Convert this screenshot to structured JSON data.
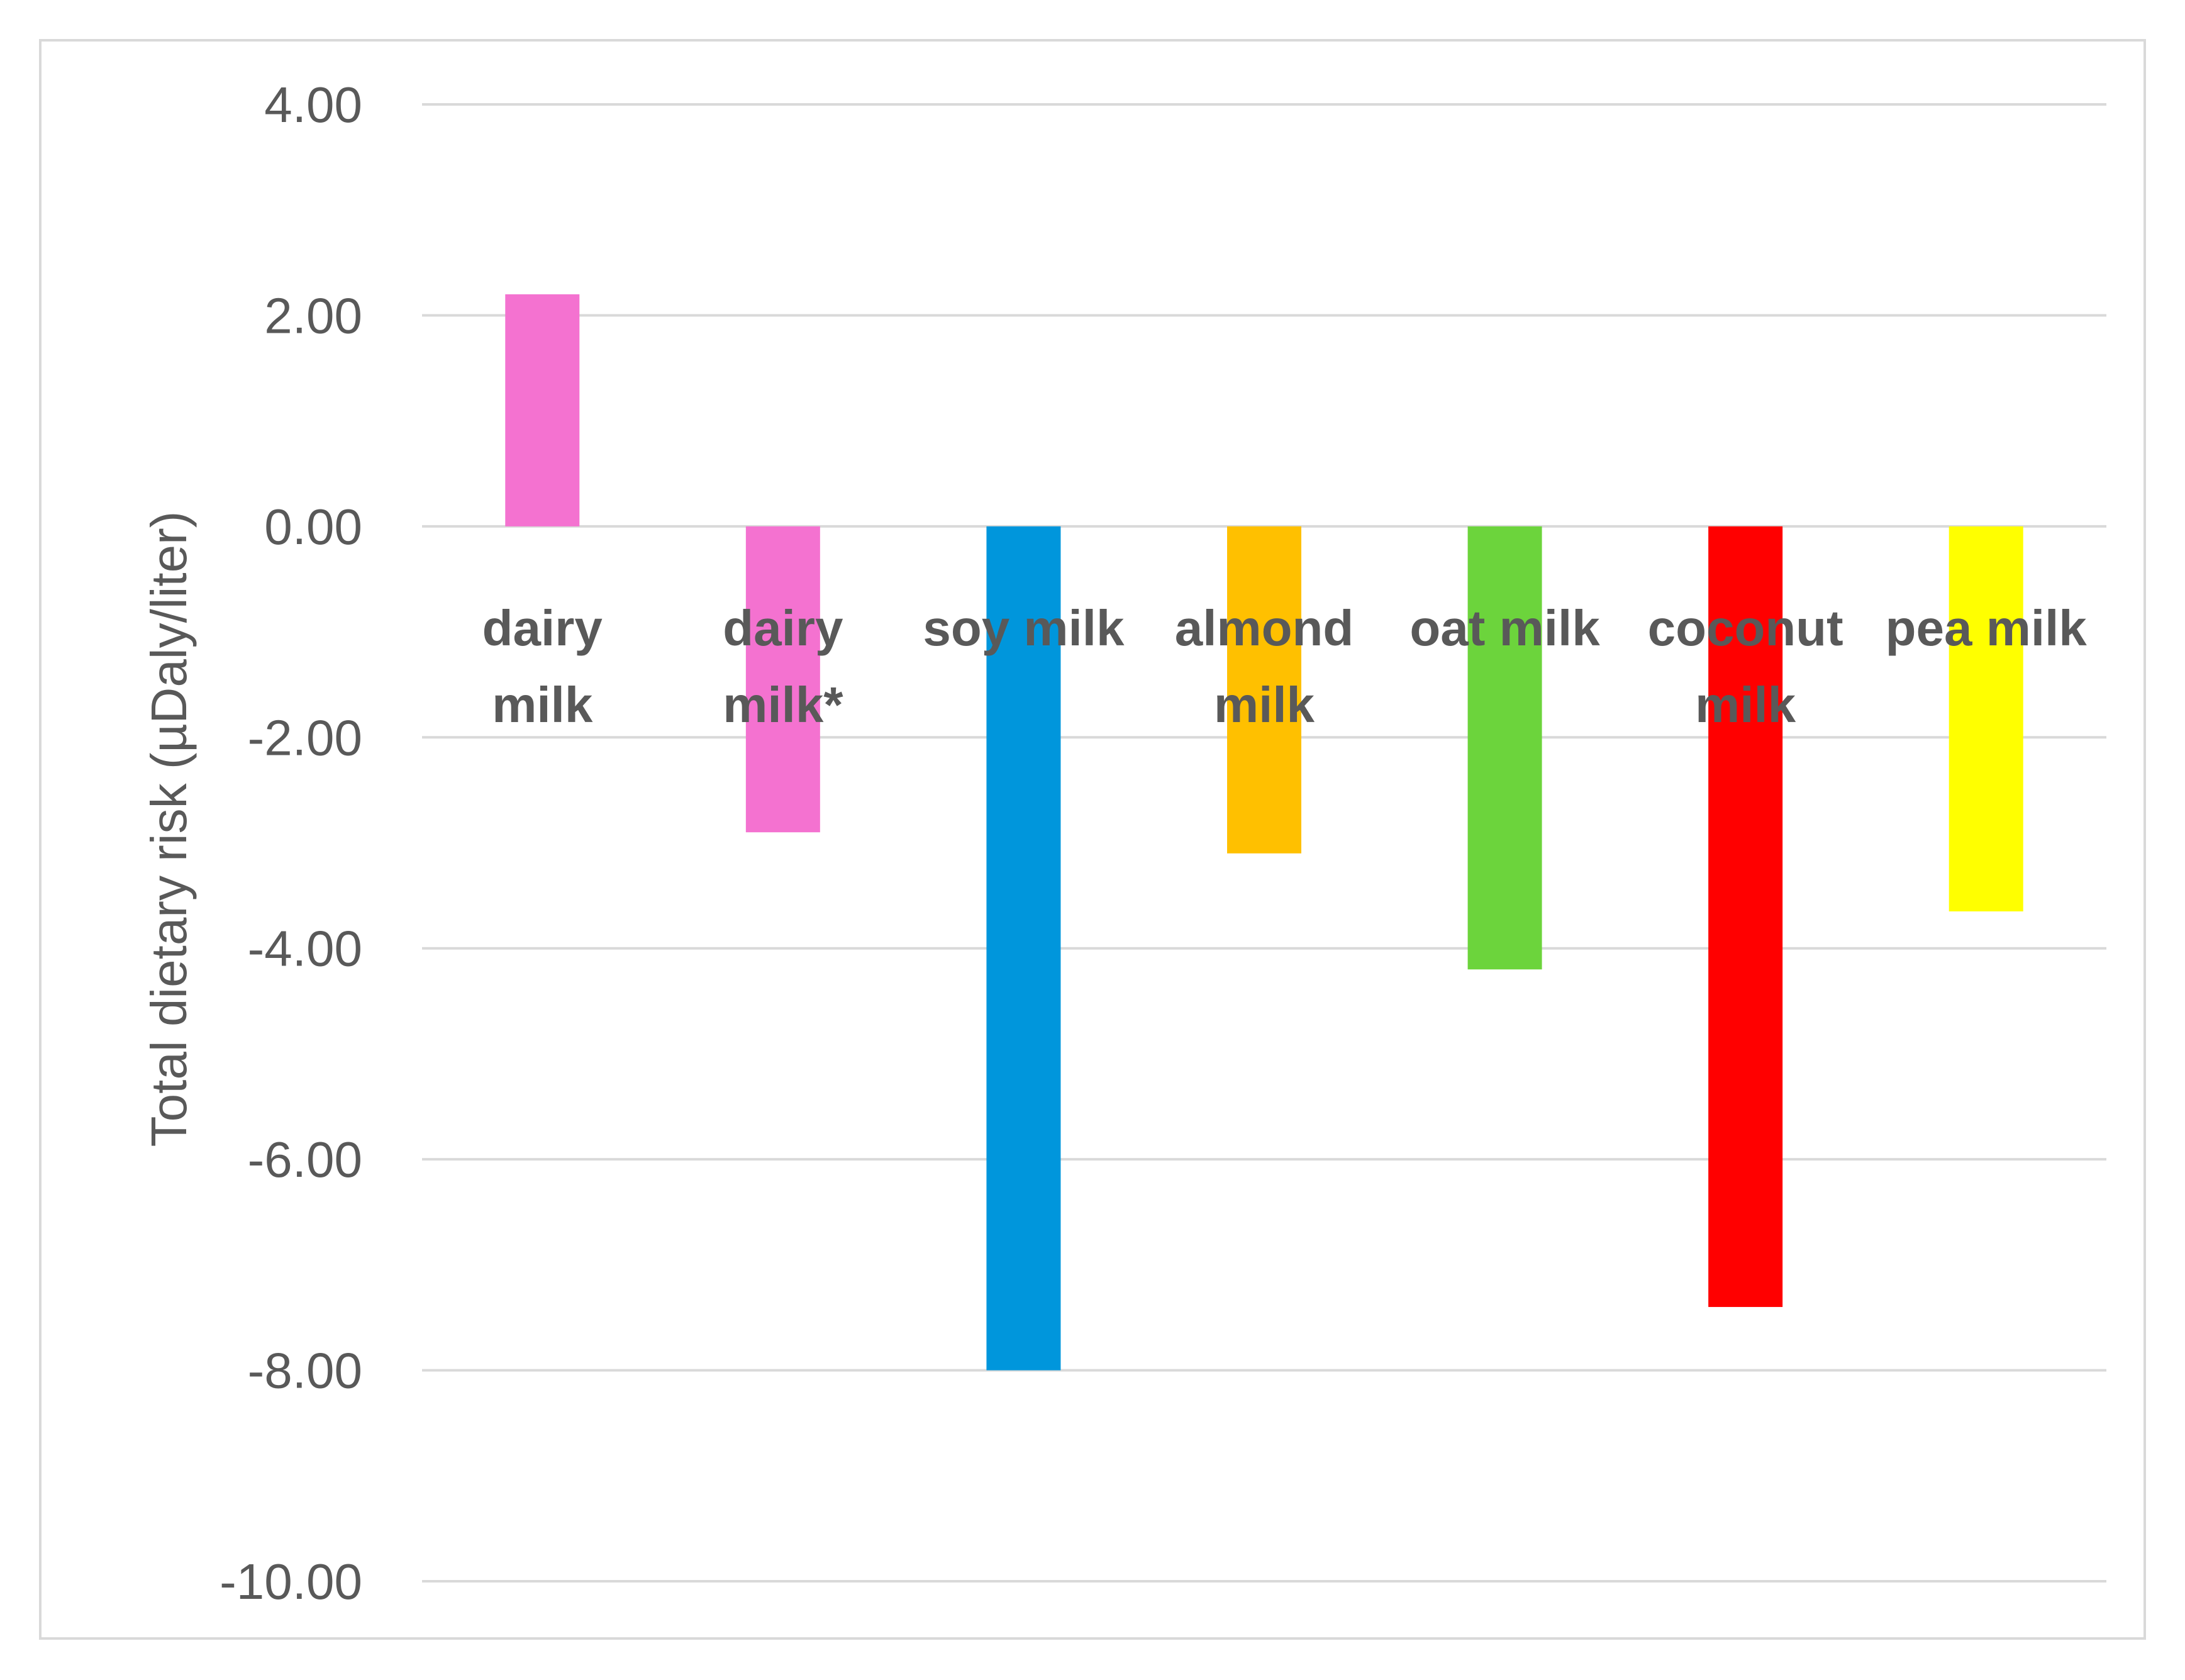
{
  "chart_data": {
    "type": "bar",
    "title": "",
    "xlabel": "",
    "ylabel": "Total dietary risk (µDaly/liter)",
    "ylim": [
      -10,
      4
    ],
    "yticks": [
      "4.00",
      "2.00",
      "0.00",
      "-2.00",
      "-4.00",
      "-6.00",
      "-8.00",
      "-10.00"
    ],
    "ytick_values": [
      4,
      2,
      0,
      -2,
      -4,
      -6,
      -8,
      -10
    ],
    "grid": true,
    "legend": "none",
    "categories": [
      {
        "lines": [
          "dairy",
          "milk"
        ]
      },
      {
        "lines": [
          "dairy",
          "milk*"
        ]
      },
      {
        "lines": [
          "soy milk"
        ]
      },
      {
        "lines": [
          "almond",
          "milk"
        ]
      },
      {
        "lines": [
          "oat milk"
        ]
      },
      {
        "lines": [
          "coconut",
          "milk"
        ]
      },
      {
        "lines": [
          "pea milk"
        ]
      }
    ],
    "values": [
      2.2,
      -2.9,
      -8.0,
      -3.1,
      -4.2,
      -7.4,
      -3.65
    ],
    "colors": [
      "#f472d0",
      "#f472d0",
      "#0096dc",
      "#ffc000",
      "#6cd43c",
      "#ff0000",
      "#ffff00"
    ],
    "grid_color": "#d9d9d9",
    "text_color": "#595959"
  }
}
